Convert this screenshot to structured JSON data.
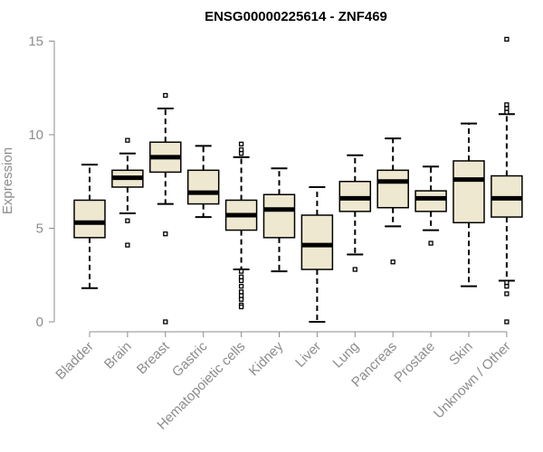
{
  "chart_data": {
    "type": "box",
    "title": "ENSG00000225614 - ZNF469",
    "xlabel": "",
    "ylabel": "Expression",
    "ylim": [
      0,
      15.5
    ],
    "yticks": [
      "0",
      "5",
      "10",
      "15"
    ],
    "ytick_values": [
      0,
      5,
      10,
      15
    ],
    "grid": false,
    "colors": {
      "box_fill": "#efe8d0",
      "box_stroke": "#000000",
      "median": "#000000",
      "axis": "#8c8c8c",
      "title": "#000000"
    },
    "categories": [
      "Bladder",
      "Brain",
      "Breast",
      "Gastric",
      "Hematopoietic cells",
      "Kidney",
      "Liver",
      "Lung",
      "Pancreas",
      "Prostate",
      "Skin",
      "Unknown / Other"
    ],
    "boxes": [
      {
        "category": "Bladder",
        "whisker_low": 1.8,
        "q1": 4.5,
        "median": 5.3,
        "q3": 6.5,
        "whisker_high": 8.4,
        "outliers": []
      },
      {
        "category": "Brain",
        "whisker_low": 5.8,
        "q1": 7.2,
        "median": 7.7,
        "q3": 8.1,
        "whisker_high": 9.0,
        "outliers": [
          9.7,
          5.4,
          4.1
        ]
      },
      {
        "category": "Breast",
        "whisker_low": 6.3,
        "q1": 8.0,
        "median": 8.8,
        "q3": 9.6,
        "whisker_high": 11.4,
        "outliers": [
          12.1,
          4.7,
          0.0
        ]
      },
      {
        "category": "Gastric",
        "whisker_low": 5.6,
        "q1": 6.3,
        "median": 6.9,
        "q3": 8.1,
        "whisker_high": 9.4,
        "outliers": []
      },
      {
        "category": "Hematopoietic cells",
        "whisker_low": 2.8,
        "q1": 4.9,
        "median": 5.7,
        "q3": 6.5,
        "whisker_high": 8.8,
        "outliers": [
          9.5,
          9.2,
          9.0,
          2.7,
          2.4,
          2.2,
          1.9,
          1.6,
          1.4,
          1.2,
          0.9,
          0.8
        ]
      },
      {
        "category": "Kidney",
        "whisker_low": 2.7,
        "q1": 4.5,
        "median": 6.0,
        "q3": 6.8,
        "whisker_high": 8.2,
        "outliers": []
      },
      {
        "category": "Liver",
        "whisker_low": 0.0,
        "q1": 2.8,
        "median": 4.1,
        "q3": 5.7,
        "whisker_high": 7.2,
        "outliers": []
      },
      {
        "category": "Lung",
        "whisker_low": 3.6,
        "q1": 5.9,
        "median": 6.6,
        "q3": 7.5,
        "whisker_high": 8.9,
        "outliers": [
          2.8
        ]
      },
      {
        "category": "Pancreas",
        "whisker_low": 5.1,
        "q1": 6.1,
        "median": 7.5,
        "q3": 8.1,
        "whisker_high": 9.8,
        "outliers": [
          3.2
        ]
      },
      {
        "category": "Prostate",
        "whisker_low": 4.9,
        "q1": 5.9,
        "median": 6.6,
        "q3": 7.0,
        "whisker_high": 8.3,
        "outliers": [
          4.2
        ]
      },
      {
        "category": "Skin",
        "whisker_low": 1.9,
        "q1": 5.3,
        "median": 7.6,
        "q3": 8.6,
        "whisker_high": 10.6,
        "outliers": []
      },
      {
        "category": "Unknown / Other",
        "whisker_low": 2.2,
        "q1": 5.6,
        "median": 6.6,
        "q3": 7.8,
        "whisker_high": 11.1,
        "outliers": [
          15.1,
          11.6,
          11.4,
          11.2,
          2.1,
          1.9,
          1.5,
          0.0
        ]
      }
    ]
  }
}
